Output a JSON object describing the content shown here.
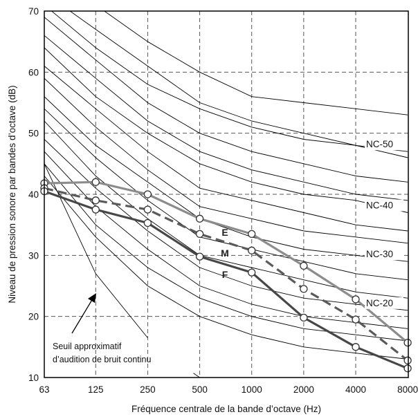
{
  "chart_data": {
    "type": "line",
    "xlabel": "Fréquence centrale de la bande d’octave (Hz)",
    "ylabel": "Niveau de pression sonore par bandes d’octave (dB)",
    "x_scale": "log2",
    "categories": [
      "63",
      "125",
      "250",
      "500",
      "1000",
      "2000",
      "4000",
      "8000"
    ],
    "x": [
      63,
      125,
      250,
      500,
      1000,
      2000,
      4000,
      8000
    ],
    "ylim": [
      10,
      70
    ],
    "yticks": [
      10,
      20,
      30,
      40,
      50,
      60,
      70
    ],
    "grid": true,
    "series": [
      {
        "name": "E",
        "color": "#8c8c8c",
        "dashed": false,
        "x": [
          63,
          125,
          250,
          500,
          1000,
          2000,
          4000,
          8000
        ],
        "values": [
          41.8,
          42.0,
          40.0,
          36.0,
          33.5,
          28.3,
          22.8,
          15.7
        ]
      },
      {
        "name": "M",
        "color": "#5a5a5a",
        "dashed": true,
        "x": [
          63,
          125,
          250,
          500,
          1000,
          2000,
          4000,
          8000
        ],
        "values": [
          41.0,
          39.0,
          37.5,
          33.5,
          30.8,
          24.5,
          19.5,
          12.8
        ]
      },
      {
        "name": "F",
        "color": "#474747",
        "dashed": false,
        "x": [
          63,
          125,
          250,
          500,
          1000,
          2000,
          4000,
          8000
        ],
        "values": [
          40.5,
          37.5,
          35.3,
          29.8,
          27.2,
          19.8,
          15.0,
          11.5
        ]
      }
    ],
    "nc_curves": [
      {
        "label": "",
        "values": [
          null,
          71,
          65,
          60,
          56,
          55,
          54,
          53
        ]
      },
      {
        "label": "",
        "values": [
          73,
          67,
          61,
          55,
          52,
          50,
          48,
          46
        ]
      },
      {
        "label": "NC-50",
        "values": [
          71,
          64,
          58,
          54,
          51,
          49,
          48,
          47
        ]
      },
      {
        "label": "",
        "values": [
          69,
          62,
          55,
          50,
          47,
          45,
          43,
          42
        ]
      },
      {
        "label": "",
        "values": [
          66,
          59,
          52,
          47,
          44,
          42,
          40,
          39
        ]
      },
      {
        "label": "NC-40",
        "values": [
          64,
          56,
          50,
          45,
          42,
          40,
          39,
          37
        ]
      },
      {
        "label": "",
        "values": [
          61,
          54,
          47,
          41,
          39,
          37,
          35,
          34
        ]
      },
      {
        "label": "",
        "values": [
          59,
          51,
          44,
          38,
          36,
          34,
          33,
          32
        ]
      },
      {
        "label": "NC-30",
        "values": [
          56,
          48,
          42,
          36,
          33,
          31,
          30,
          29
        ]
      },
      {
        "label": "",
        "values": [
          54,
          46,
          39,
          33,
          31,
          29,
          27,
          26
        ]
      },
      {
        "label": "",
        "values": [
          52,
          43,
          36,
          30,
          28,
          26,
          24,
          23
        ]
      },
      {
        "label": "NC-20",
        "values": [
          49,
          41,
          34,
          28,
          25,
          23,
          22,
          21
        ]
      },
      {
        "label": "",
        "values": [
          47,
          38,
          31,
          25,
          22,
          20,
          19,
          18
        ]
      },
      {
        "label": "",
        "values": [
          45,
          35,
          28,
          23,
          20,
          18,
          17,
          16
        ]
      },
      {
        "label": "",
        "values": [
          43,
          33,
          25,
          20,
          17,
          15,
          14,
          13
        ]
      }
    ],
    "threshold_curve": {
      "values": [
        [
          63,
          45
        ],
        [
          125,
          27
        ],
        [
          250,
          16.5
        ]
      ]
    },
    "threshold_tail": {
      "values": [
        [
          460,
          10.7
        ],
        [
          500,
          10
        ]
      ]
    },
    "annotations": {
      "threshold_label_line1": "Seuil approximatif",
      "threshold_label_line2": "d’audition de bruit continu"
    }
  }
}
